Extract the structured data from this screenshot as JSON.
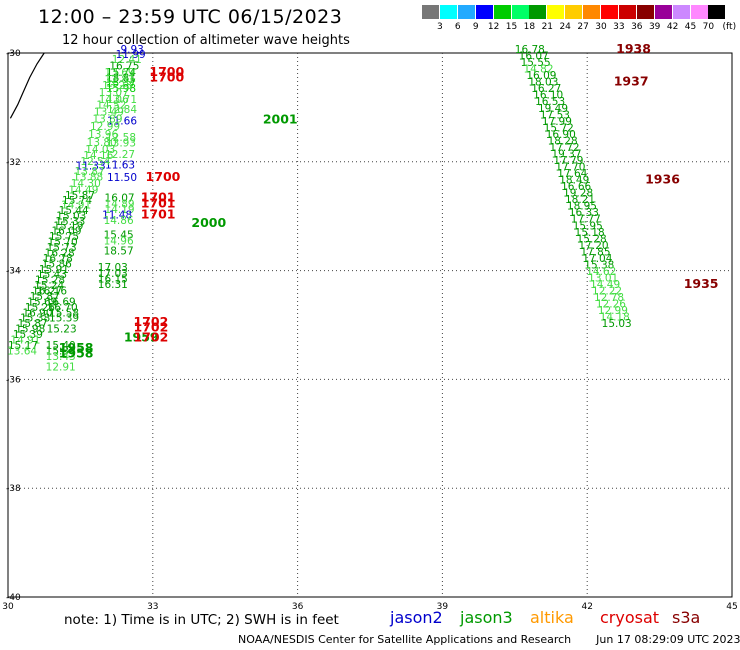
{
  "header": {
    "title": "12:00 – 23:59 UTC 06/15/2023",
    "subtitle": "12 hour collection of altimeter wave heights"
  },
  "legend": {
    "unit": "(ft)",
    "colors": [
      "#777777",
      "#00ffff",
      "#22aaff",
      "#0000ff",
      "#00cc00",
      "#00ff66",
      "#009900",
      "#ffff00",
      "#ffcc00",
      "#ff8800",
      "#ff0000",
      "#cc0000",
      "#880000",
      "#990099",
      "#cc88ff",
      "#ff88ff",
      "#000000"
    ],
    "labels": [
      "3",
      "6",
      "9",
      "12",
      "15",
      "18",
      "21",
      "24",
      "27",
      "30",
      "33",
      "36",
      "39",
      "42",
      "45",
      "70"
    ]
  },
  "map": {
    "xlim": [
      30,
      45
    ],
    "ylim": [
      -40,
      -30
    ],
    "x_ticks": [
      "30",
      "33",
      "36",
      "39",
      "42",
      "45"
    ],
    "y_ticks": [
      "-30",
      "-32",
      "-34",
      "-36",
      "-38",
      "-40"
    ],
    "coastline": [
      [
        30.05,
        -31.2
      ],
      [
        30.2,
        -30.95
      ],
      [
        30.3,
        -30.75
      ],
      [
        30.45,
        -30.45
      ],
      [
        30.6,
        -30.2
      ],
      [
        30.75,
        -30.0
      ]
    ]
  },
  "chart_data": {
    "type": "scatter",
    "description_units": "wave height labels placed at lon/lat",
    "points": [
      {
        "lon": 32.03,
        "lat": -30.42,
        "label": "15.74",
        "color": "#00aa00"
      },
      {
        "lon": 32.03,
        "lat": -30.52,
        "label": "18.81",
        "color": "#009900"
      },
      {
        "lon": 32.03,
        "lat": -30.62,
        "label": "15.37",
        "color": "#00cc00"
      },
      {
        "lon": 32.03,
        "lat": -30.72,
        "label": "15.98",
        "color": "#00cc00"
      },
      {
        "lon": 32.05,
        "lat": -30.92,
        "label": "13.71",
        "color": "#44dd44"
      },
      {
        "lon": 32.05,
        "lat": -31.1,
        "label": "12.84",
        "color": "#44dd44"
      },
      {
        "lon": 32.05,
        "lat": -31.31,
        "label": "11.66",
        "color": "#0000cc"
      },
      {
        "lon": 32.03,
        "lat": -31.62,
        "label": "12.58",
        "color": "#44dd44"
      },
      {
        "lon": 32.03,
        "lat": -31.72,
        "label": "13.93",
        "color": "#44dd44"
      },
      {
        "lon": 32.01,
        "lat": -31.93,
        "label": "12.27",
        "color": "#44dd44"
      },
      {
        "lon": 32.01,
        "lat": -32.12,
        "label": "11.63",
        "color": "#0000cc"
      },
      {
        "lon": 32.05,
        "lat": -32.35,
        "label": "11.50",
        "color": "#0000cc"
      },
      {
        "lon": 32.0,
        "lat": -32.73,
        "label": "16.07",
        "color": "#009900"
      },
      {
        "lon": 32.0,
        "lat": -32.84,
        "label": "14.89",
        "color": "#44dd44"
      },
      {
        "lon": 32.0,
        "lat": -32.94,
        "label": "14.19",
        "color": "#44dd44"
      },
      {
        "lon": 31.95,
        "lat": -33.04,
        "label": "11.48",
        "color": "#0000cc"
      },
      {
        "lon": 31.98,
        "lat": -33.14,
        "label": "14.86",
        "color": "#44dd44"
      },
      {
        "lon": 31.98,
        "lat": -33.41,
        "label": "15.45",
        "color": "#009900"
      },
      {
        "lon": 31.98,
        "lat": -33.52,
        "label": "14.96",
        "color": "#44dd44"
      },
      {
        "lon": 31.98,
        "lat": -33.7,
        "label": "18.57",
        "color": "#009900"
      },
      {
        "lon": 31.86,
        "lat": -34.01,
        "label": "17.03",
        "color": "#009900"
      },
      {
        "lon": 31.86,
        "lat": -34.12,
        "label": "17.03",
        "color": "#009900"
      },
      {
        "lon": 31.86,
        "lat": -34.22,
        "label": "16.15",
        "color": "#009900"
      },
      {
        "lon": 31.86,
        "lat": -34.32,
        "label": "16.31",
        "color": "#009900"
      },
      {
        "lon": 32.33,
        "lat": -30.0,
        "label": "9.93",
        "color": "#0000cc"
      },
      {
        "lon": 32.23,
        "lat": -30.09,
        "label": "11.99",
        "color": "#0000cc"
      },
      {
        "lon": 32.15,
        "lat": -30.18,
        "label": "12.41",
        "color": "#44dd44"
      },
      {
        "lon": 32.1,
        "lat": -30.3,
        "label": "16.75",
        "color": "#009900"
      },
      {
        "lon": 32.0,
        "lat": -30.42,
        "label": "13.69",
        "color": "#44dd44"
      },
      {
        "lon": 32.0,
        "lat": -30.55,
        "label": "12.81",
        "color": "#44dd44"
      },
      {
        "lon": 31.95,
        "lat": -30.66,
        "label": "13.23",
        "color": "#44dd44"
      },
      {
        "lon": 31.88,
        "lat": -30.79,
        "label": "13.07",
        "color": "#44dd44"
      },
      {
        "lon": 31.88,
        "lat": -30.92,
        "label": "14.06",
        "color": "#44dd44"
      },
      {
        "lon": 31.83,
        "lat": -31.02,
        "label": "14.52",
        "color": "#44dd44"
      },
      {
        "lon": 31.78,
        "lat": -31.15,
        "label": "13.49",
        "color": "#44dd44"
      },
      {
        "lon": 31.75,
        "lat": -31.28,
        "label": "13.89",
        "color": "#44dd44"
      },
      {
        "lon": 31.7,
        "lat": -31.42,
        "label": "12.99",
        "color": "#44dd44"
      },
      {
        "lon": 31.66,
        "lat": -31.56,
        "label": "13.96",
        "color": "#44dd44"
      },
      {
        "lon": 31.63,
        "lat": -31.71,
        "label": "13.80",
        "color": "#44dd44"
      },
      {
        "lon": 31.6,
        "lat": -31.84,
        "label": "14.03",
        "color": "#44dd44"
      },
      {
        "lon": 31.56,
        "lat": -31.95,
        "label": "14.16",
        "color": "#44dd44"
      },
      {
        "lon": 31.5,
        "lat": -32.06,
        "label": "12.54",
        "color": "#44dd44"
      },
      {
        "lon": 31.4,
        "lat": -32.14,
        "label": "11.33",
        "color": "#0000cc"
      },
      {
        "lon": 31.38,
        "lat": -32.24,
        "label": "13.87",
        "color": "#44dd44"
      },
      {
        "lon": 31.35,
        "lat": -32.34,
        "label": "13.88",
        "color": "#44dd44"
      },
      {
        "lon": 31.3,
        "lat": -32.46,
        "label": "14.30",
        "color": "#44dd44"
      },
      {
        "lon": 31.25,
        "lat": -32.58,
        "label": "14.49",
        "color": "#44dd44"
      },
      {
        "lon": 31.18,
        "lat": -32.68,
        "label": "15.87",
        "color": "#009900"
      },
      {
        "lon": 31.12,
        "lat": -32.78,
        "label": "15.74",
        "color": "#009900"
      },
      {
        "lon": 31.1,
        "lat": -32.86,
        "label": "14.91",
        "color": "#44dd44"
      },
      {
        "lon": 31.05,
        "lat": -32.96,
        "label": "15.44",
        "color": "#009900"
      },
      {
        "lon": 31.0,
        "lat": -33.06,
        "label": "15.03",
        "color": "#009900"
      },
      {
        "lon": 30.98,
        "lat": -33.16,
        "label": "15.33",
        "color": "#009900"
      },
      {
        "lon": 30.94,
        "lat": -33.24,
        "label": "15.19",
        "color": "#009900"
      },
      {
        "lon": 30.9,
        "lat": -33.34,
        "label": "16.09",
        "color": "#009900"
      },
      {
        "lon": 30.85,
        "lat": -33.44,
        "label": "15.75",
        "color": "#009900"
      },
      {
        "lon": 30.82,
        "lat": -33.54,
        "label": "15.70",
        "color": "#009900"
      },
      {
        "lon": 30.8,
        "lat": -33.64,
        "label": "15.73",
        "color": "#009900"
      },
      {
        "lon": 30.76,
        "lat": -33.74,
        "label": "16.28",
        "color": "#009900"
      },
      {
        "lon": 30.72,
        "lat": -33.84,
        "label": "16.78",
        "color": "#009900"
      },
      {
        "lon": 30.7,
        "lat": -33.94,
        "label": "15.86",
        "color": "#009900"
      },
      {
        "lon": 30.64,
        "lat": -34.04,
        "label": "15.91",
        "color": "#009900"
      },
      {
        "lon": 30.6,
        "lat": -34.14,
        "label": "15.43",
        "color": "#009900"
      },
      {
        "lon": 30.56,
        "lat": -34.24,
        "label": "15.28",
        "color": "#009900"
      },
      {
        "lon": 30.54,
        "lat": -34.34,
        "label": "15.24",
        "color": "#009900"
      },
      {
        "lon": 30.5,
        "lat": -34.44,
        "label": "16.27",
        "color": "#009900"
      },
      {
        "lon": 30.45,
        "lat": -34.54,
        "label": "15.87",
        "color": "#009900"
      },
      {
        "lon": 30.4,
        "lat": -34.64,
        "label": "15.69",
        "color": "#009900"
      },
      {
        "lon": 30.35,
        "lat": -34.74,
        "label": "15.26",
        "color": "#009900"
      },
      {
        "lon": 30.3,
        "lat": -34.84,
        "label": "16.90",
        "color": "#009900"
      },
      {
        "lon": 30.25,
        "lat": -34.94,
        "label": "15.38",
        "color": "#009900"
      },
      {
        "lon": 30.2,
        "lat": -35.04,
        "label": "15.87",
        "color": "#009900"
      },
      {
        "lon": 30.15,
        "lat": -35.14,
        "label": "15.98",
        "color": "#009900"
      },
      {
        "lon": 30.1,
        "lat": -35.24,
        "label": "15.39",
        "color": "#009900"
      },
      {
        "lon": 30.05,
        "lat": -35.34,
        "label": "14.91",
        "color": "#44dd44"
      },
      {
        "lon": 30.0,
        "lat": -35.44,
        "label": "15.17",
        "color": "#009900"
      },
      {
        "lon": 29.98,
        "lat": -35.54,
        "label": "13.64",
        "color": "#44dd44"
      },
      {
        "lon": 30.6,
        "lat": -34.44,
        "label": "16.16",
        "color": "#009900"
      },
      {
        "lon": 30.78,
        "lat": -34.64,
        "label": "16.69",
        "color": "#009900"
      },
      {
        "lon": 30.82,
        "lat": -34.74,
        "label": "16.70",
        "color": "#009900"
      },
      {
        "lon": 30.85,
        "lat": -34.84,
        "label": "15.58",
        "color": "#009900"
      },
      {
        "lon": 30.85,
        "lat": -34.94,
        "label": "15.39",
        "color": "#009900"
      },
      {
        "lon": 30.8,
        "lat": -35.14,
        "label": "15.23",
        "color": "#009900"
      },
      {
        "lon": 30.78,
        "lat": -35.44,
        "label": "15.40",
        "color": "#009900"
      },
      {
        "lon": 30.78,
        "lat": -35.54,
        "label": "15.38",
        "color": "#009900"
      },
      {
        "lon": 30.78,
        "lat": -35.64,
        "label": "13.43",
        "color": "#44dd44"
      },
      {
        "lon": 30.78,
        "lat": -35.84,
        "label": "12.91",
        "color": "#44dd44"
      },
      {
        "lon": 40.5,
        "lat": -30.0,
        "label": "16.78",
        "color": "#009900"
      },
      {
        "lon": 40.58,
        "lat": -30.12,
        "label": "16.07",
        "color": "#009900"
      },
      {
        "lon": 40.62,
        "lat": -30.24,
        "label": "15.55",
        "color": "#009900"
      },
      {
        "lon": 40.68,
        "lat": -30.36,
        "label": "14.82",
        "color": "#44dd44"
      },
      {
        "lon": 40.74,
        "lat": -30.48,
        "label": "16.09",
        "color": "#009900"
      },
      {
        "lon": 40.78,
        "lat": -30.6,
        "label": "18.03",
        "color": "#009900"
      },
      {
        "lon": 40.84,
        "lat": -30.72,
        "label": "16.27",
        "color": "#009900"
      },
      {
        "lon": 40.88,
        "lat": -30.84,
        "label": "16.10",
        "color": "#009900"
      },
      {
        "lon": 40.92,
        "lat": -30.96,
        "label": "16.53",
        "color": "#009900"
      },
      {
        "lon": 40.98,
        "lat": -31.08,
        "label": "19.49",
        "color": "#009900"
      },
      {
        "lon": 41.02,
        "lat": -31.2,
        "label": "17.53",
        "color": "#009900"
      },
      {
        "lon": 41.06,
        "lat": -31.32,
        "label": "17.99",
        "color": "#009900"
      },
      {
        "lon": 41.1,
        "lat": -31.44,
        "label": "15.72",
        "color": "#009900"
      },
      {
        "lon": 41.14,
        "lat": -31.56,
        "label": "16.90",
        "color": "#009900"
      },
      {
        "lon": 41.18,
        "lat": -31.68,
        "label": "18.28",
        "color": "#009900"
      },
      {
        "lon": 41.22,
        "lat": -31.8,
        "label": "17.72",
        "color": "#009900"
      },
      {
        "lon": 41.26,
        "lat": -31.92,
        "label": "19.37",
        "color": "#009900"
      },
      {
        "lon": 41.3,
        "lat": -32.04,
        "label": "17.79",
        "color": "#009900"
      },
      {
        "lon": 41.34,
        "lat": -32.16,
        "label": "17.70",
        "color": "#009900"
      },
      {
        "lon": 41.38,
        "lat": -32.28,
        "label": "17.64",
        "color": "#009900"
      },
      {
        "lon": 41.42,
        "lat": -32.4,
        "label": "18.49",
        "color": "#009900"
      },
      {
        "lon": 41.46,
        "lat": -32.52,
        "label": "16.66",
        "color": "#009900"
      },
      {
        "lon": 41.5,
        "lat": -32.64,
        "label": "19.28",
        "color": "#009900"
      },
      {
        "lon": 41.54,
        "lat": -32.76,
        "label": "18.21",
        "color": "#009900"
      },
      {
        "lon": 41.58,
        "lat": -32.88,
        "label": "18.95",
        "color": "#009900"
      },
      {
        "lon": 41.62,
        "lat": -33.0,
        "label": "16.33",
        "color": "#009900"
      },
      {
        "lon": 41.66,
        "lat": -33.12,
        "label": "17.77",
        "color": "#009900"
      },
      {
        "lon": 41.7,
        "lat": -33.24,
        "label": "15.95",
        "color": "#009900"
      },
      {
        "lon": 41.74,
        "lat": -33.36,
        "label": "15.18",
        "color": "#009900"
      },
      {
        "lon": 41.78,
        "lat": -33.48,
        "label": "15.28",
        "color": "#009900"
      },
      {
        "lon": 41.82,
        "lat": -33.6,
        "label": "17.20",
        "color": "#009900"
      },
      {
        "lon": 41.86,
        "lat": -33.72,
        "label": "17.85",
        "color": "#009900"
      },
      {
        "lon": 41.9,
        "lat": -33.84,
        "label": "17.04",
        "color": "#009900"
      },
      {
        "lon": 41.94,
        "lat": -33.96,
        "label": "15.38",
        "color": "#009900"
      },
      {
        "lon": 41.98,
        "lat": -34.08,
        "label": "14.62",
        "color": "#44dd44"
      },
      {
        "lon": 42.02,
        "lat": -34.2,
        "label": "13.01",
        "color": "#44dd44"
      },
      {
        "lon": 42.06,
        "lat": -34.32,
        "label": "14.49",
        "color": "#44dd44"
      },
      {
        "lon": 42.1,
        "lat": -34.44,
        "label": "12.22",
        "color": "#44dd44"
      },
      {
        "lon": 42.14,
        "lat": -34.56,
        "label": "12.78",
        "color": "#44dd44"
      },
      {
        "lon": 42.18,
        "lat": -34.68,
        "label": "12.26",
        "color": "#44dd44"
      },
      {
        "lon": 42.22,
        "lat": -34.8,
        "label": "12.99",
        "color": "#44dd44"
      },
      {
        "lon": 42.26,
        "lat": -34.92,
        "label": "14.18",
        "color": "#44dd44"
      },
      {
        "lon": 42.3,
        "lat": -35.04,
        "label": "15.03",
        "color": "#009900"
      }
    ],
    "time_labels": [
      {
        "lon": 32.93,
        "lat": -30.42,
        "label": "1700",
        "color": "#dd0000"
      },
      {
        "lon": 32.93,
        "lat": -30.52,
        "label": "1700",
        "color": "#dd0000"
      },
      {
        "lon": 32.85,
        "lat": -32.35,
        "label": "1700",
        "color": "#dd0000"
      },
      {
        "lon": 32.75,
        "lat": -32.73,
        "label": "1701",
        "color": "#dd0000"
      },
      {
        "lon": 32.75,
        "lat": -32.84,
        "label": "1701",
        "color": "#dd0000"
      },
      {
        "lon": 32.75,
        "lat": -33.04,
        "label": "1701",
        "color": "#dd0000"
      },
      {
        "lon": 32.6,
        "lat": -35.02,
        "label": "1702",
        "color": "#dd0000"
      },
      {
        "lon": 32.6,
        "lat": -35.12,
        "label": "1702",
        "color": "#dd0000"
      },
      {
        "lon": 32.4,
        "lat": -35.3,
        "label": "1959",
        "color": "#009900"
      },
      {
        "lon": 32.6,
        "lat": -35.3,
        "label": "1702",
        "color": "#dd0000"
      },
      {
        "lon": 31.05,
        "lat": -35.5,
        "label": "1958",
        "color": "#009900"
      },
      {
        "lon": 31.05,
        "lat": -35.6,
        "label": "1958",
        "color": "#009900"
      },
      {
        "lon": 35.28,
        "lat": -31.3,
        "label": "2001",
        "color": "#009900"
      },
      {
        "lon": 33.8,
        "lat": -33.2,
        "label": "2000",
        "color": "#009900"
      },
      {
        "lon": 42.6,
        "lat": -30.0,
        "label": "1938",
        "color": "#880000"
      },
      {
        "lon": 42.55,
        "lat": -30.6,
        "label": "1937",
        "color": "#880000"
      },
      {
        "lon": 43.2,
        "lat": -32.4,
        "label": "1936",
        "color": "#880000"
      },
      {
        "lon": 44.0,
        "lat": -34.32,
        "label": "1935",
        "color": "#880000"
      }
    ]
  },
  "notes": {
    "text": "note:  1) Time is in UTC;  2) SWH is in feet",
    "satellites": [
      {
        "name": "jason2",
        "color": "#0000cc"
      },
      {
        "name": "jason3",
        "color": "#009900"
      },
      {
        "name": "altika",
        "color": "#ff9900"
      },
      {
        "name": "cryosat",
        "color": "#dd0000"
      },
      {
        "name": "s3a",
        "color": "#880000"
      }
    ]
  },
  "footer": {
    "agency": "NOAA/NESDIS Center for Satellite Applications and Research",
    "timestamp": "Jun 17 08:29:09 UTC 2023"
  }
}
